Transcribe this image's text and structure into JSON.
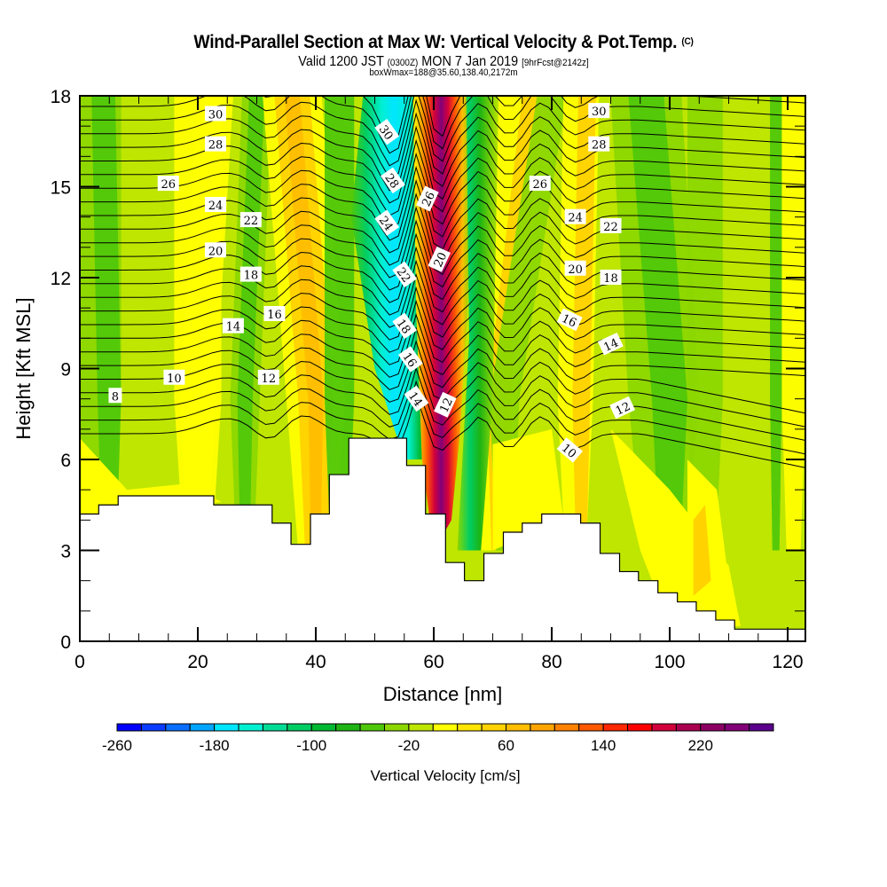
{
  "header": {
    "title": "Wind-Parallel Section at Max W: Vertical Velocity & Pot.Temp.",
    "title_mark": "(C)",
    "subtitle_a": "Valid 1200 JST",
    "subtitle_b": "(0300Z)",
    "subtitle_c": "MON 7 Jan 2019",
    "subtitle_d": "[9hrFcst@2142z]",
    "box_info": "boxWmax=188@35.60,138.40,2172m"
  },
  "chart_data": {
    "type": "heatmap",
    "title": "Wind-Parallel Section at Max W: Vertical Velocity & Pot.Temp.",
    "xlabel": "Distance [nm]",
    "ylabel": "Height [Kft MSL]",
    "xlim": [
      0,
      123
    ],
    "ylim": [
      0,
      18
    ],
    "xticks": [
      0,
      20,
      40,
      60,
      80,
      100,
      120
    ],
    "yticks": [
      0,
      3,
      6,
      9,
      12,
      15,
      18
    ],
    "x_minor_step": 5,
    "y_minor_step": 1,
    "colorbar": {
      "title": "Vertical Velocity [cm/s]",
      "tick_labels": [
        "-260",
        "-180",
        "-100",
        "-20",
        "60",
        "140",
        "220"
      ],
      "min": -260,
      "max": 280,
      "step": 20,
      "colors": [
        "#0000ff",
        "#0a3cff",
        "#0a6eff",
        "#00a5ff",
        "#00e6ff",
        "#00f0d2",
        "#00dc96",
        "#00cd64",
        "#00b932",
        "#1eb414",
        "#50c80a",
        "#8cd700",
        "#bee600",
        "#ffff00",
        "#ffe600",
        "#ffd200",
        "#ffbe00",
        "#ffa500",
        "#ff8200",
        "#ff5a00",
        "#ff2800",
        "#ff0000",
        "#d2003c",
        "#aa0050",
        "#8c0064",
        "#820078",
        "#5a008c"
      ]
    },
    "shaded_field": {
      "name": "Vertical Velocity",
      "units": "cm/s",
      "max_updraft": 188,
      "features": [
        {
          "desc": "strong updraft core",
          "x_nm": [
            57,
            64
          ],
          "y_kft": [
            7,
            18
          ],
          "value_cms": 240
        },
        {
          "desc": "downdraft band",
          "x_nm": [
            48,
            56
          ],
          "y_kft": [
            6,
            18
          ],
          "value_cms": -200
        }
      ]
    },
    "contours": {
      "name": "Potential Temperature",
      "units": "C",
      "interval": 1,
      "labels": [
        {
          "value": "30",
          "x_nm": 23,
          "y_kft": 17.4
        },
        {
          "value": "28",
          "x_nm": 23,
          "y_kft": 16.4
        },
        {
          "value": "26",
          "x_nm": 15,
          "y_kft": 15.1
        },
        {
          "value": "24",
          "x_nm": 23,
          "y_kft": 14.4
        },
        {
          "value": "22",
          "x_nm": 29,
          "y_kft": 13.9
        },
        {
          "value": "20",
          "x_nm": 23,
          "y_kft": 12.9
        },
        {
          "value": "18",
          "x_nm": 29,
          "y_kft": 12.1
        },
        {
          "value": "16",
          "x_nm": 33,
          "y_kft": 10.8
        },
        {
          "value": "14",
          "x_nm": 26,
          "y_kft": 10.4
        },
        {
          "value": "12",
          "x_nm": 32,
          "y_kft": 8.7
        },
        {
          "value": "10",
          "x_nm": 16,
          "y_kft": 8.7
        },
        {
          "value": "8",
          "x_nm": 6,
          "y_kft": 8.1
        },
        {
          "value": "30",
          "x_nm": 52,
          "y_kft": 16.8
        },
        {
          "value": "28",
          "x_nm": 53,
          "y_kft": 15.2
        },
        {
          "value": "24",
          "x_nm": 52,
          "y_kft": 13.8
        },
        {
          "value": "22",
          "x_nm": 55,
          "y_kft": 12.1
        },
        {
          "value": "18",
          "x_nm": 55,
          "y_kft": 10.4
        },
        {
          "value": "16",
          "x_nm": 56,
          "y_kft": 9.3
        },
        {
          "value": "14",
          "x_nm": 57,
          "y_kft": 8.0
        },
        {
          "value": "26",
          "x_nm": 59,
          "y_kft": 14.6
        },
        {
          "value": "20",
          "x_nm": 61,
          "y_kft": 12.6
        },
        {
          "value": "12",
          "x_nm": 62,
          "y_kft": 7.8
        },
        {
          "value": "30",
          "x_nm": 88,
          "y_kft": 17.5
        },
        {
          "value": "28",
          "x_nm": 88,
          "y_kft": 16.4
        },
        {
          "value": "26",
          "x_nm": 78,
          "y_kft": 15.1
        },
        {
          "value": "24",
          "x_nm": 84,
          "y_kft": 14.0
        },
        {
          "value": "22",
          "x_nm": 90,
          "y_kft": 13.7
        },
        {
          "value": "20",
          "x_nm": 84,
          "y_kft": 12.3
        },
        {
          "value": "18",
          "x_nm": 90,
          "y_kft": 12.0
        },
        {
          "value": "16",
          "x_nm": 83,
          "y_kft": 10.6
        },
        {
          "value": "14",
          "x_nm": 90,
          "y_kft": 9.8
        },
        {
          "value": "12",
          "x_nm": 92,
          "y_kft": 7.7
        },
        {
          "value": "10",
          "x_nm": 83,
          "y_kft": 6.3
        }
      ]
    },
    "terrain_kft": [
      [
        0,
        4.2
      ],
      [
        3.2,
        4.5
      ],
      [
        6.5,
        4.8
      ],
      [
        22.7,
        4.5
      ],
      [
        32.6,
        3.9
      ],
      [
        35.8,
        3.2
      ],
      [
        39.1,
        4.2
      ],
      [
        42.3,
        5.5
      ],
      [
        45.6,
        6.7
      ],
      [
        55.4,
        5.8
      ],
      [
        58.6,
        4.2
      ],
      [
        62.0,
        2.6
      ],
      [
        65.2,
        2.0
      ],
      [
        68.5,
        2.9
      ],
      [
        71.8,
        3.6
      ],
      [
        75.0,
        3.9
      ],
      [
        78.3,
        4.2
      ],
      [
        84.9,
        3.9
      ],
      [
        88.2,
        2.9
      ],
      [
        91.5,
        2.3
      ],
      [
        94.7,
        2.0
      ],
      [
        98.0,
        1.6
      ],
      [
        101.3,
        1.3
      ],
      [
        104.5,
        1.0
      ],
      [
        107.8,
        0.7
      ],
      [
        111.0,
        0.4
      ]
    ]
  }
}
